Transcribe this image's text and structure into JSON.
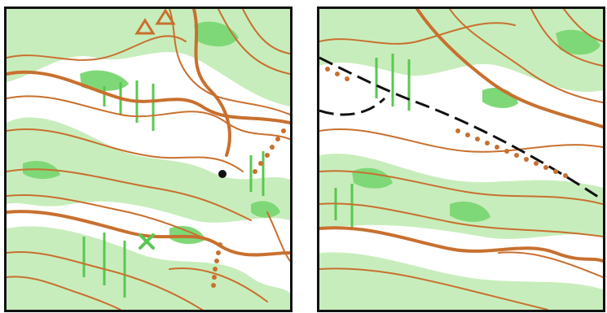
{
  "figure": {
    "panels": [
      {
        "id": "left",
        "features": [
          "contours",
          "index-contours",
          "vegetation-light",
          "vegetation-medium",
          "marsh-lines",
          "cliff-triangles",
          "dotted-path",
          "boulder",
          "green-x"
        ]
      },
      {
        "id": "right",
        "features": [
          "contours",
          "index-contours",
          "vegetation-light",
          "vegetation-medium",
          "marsh-lines",
          "dashed-track",
          "dotted-path"
        ]
      }
    ],
    "colors": {
      "contour": "#c8702f",
      "veg_light": "#c8edbc",
      "veg_medium": "#7fd877",
      "marsh": "#58c850",
      "track": "#111111",
      "border": "#111111",
      "background": "#ffffff"
    }
  }
}
